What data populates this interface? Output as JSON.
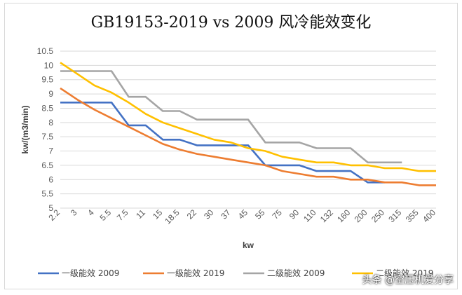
{
  "chart_data": {
    "type": "line",
    "title": "GB19153-2019 vs 2009 风冷能效变化",
    "xlabel": "kw",
    "ylabel": "kw/(m3/min)",
    "ylim": [
      5,
      10.5
    ],
    "ytick_step": 0.5,
    "grid": "horizontal",
    "legend": "bottom",
    "categories": [
      "2.2",
      "3",
      "4",
      "5.5",
      "7.5",
      "11",
      "15",
      "18.5",
      "22",
      "30",
      "37",
      "45",
      "55",
      "75",
      "90",
      "110",
      "132",
      "160",
      "200",
      "250",
      "315",
      "355",
      "400"
    ],
    "series": [
      {
        "name": "一级能效 2009",
        "color": "#4472c4",
        "values": [
          8.7,
          8.7,
          8.7,
          8.7,
          7.9,
          7.9,
          7.4,
          7.4,
          7.2,
          7.2,
          7.2,
          7.2,
          6.5,
          6.5,
          6.5,
          6.3,
          6.3,
          6.3,
          5.9,
          5.9,
          null,
          null,
          null
        ]
      },
      {
        "name": "一级能效 2019",
        "color": "#ed7d31",
        "values": [
          9.2,
          8.8,
          8.45,
          8.15,
          7.85,
          7.55,
          7.25,
          7.05,
          6.9,
          6.8,
          6.7,
          6.6,
          6.5,
          6.3,
          6.2,
          6.1,
          6.1,
          6.0,
          6.0,
          5.9,
          5.9,
          5.8,
          5.8
        ]
      },
      {
        "name": "二级能效 2009",
        "color": "#a5a5a5",
        "values": [
          9.8,
          9.8,
          9.8,
          9.8,
          8.9,
          8.9,
          8.4,
          8.4,
          8.1,
          8.1,
          8.1,
          8.1,
          7.3,
          7.3,
          7.3,
          7.1,
          7.1,
          7.1,
          6.6,
          6.6,
          6.6,
          null,
          null
        ]
      },
      {
        "name": "二级能效 2019",
        "color": "#ffc000",
        "values": [
          10.1,
          9.7,
          9.3,
          9.05,
          8.7,
          8.3,
          8.0,
          7.8,
          7.6,
          7.4,
          7.3,
          7.1,
          7.0,
          6.8,
          6.7,
          6.6,
          6.6,
          6.5,
          6.5,
          6.4,
          6.4,
          6.3,
          6.3
        ]
      }
    ]
  },
  "watermark": "头条 @空压机爱分享"
}
